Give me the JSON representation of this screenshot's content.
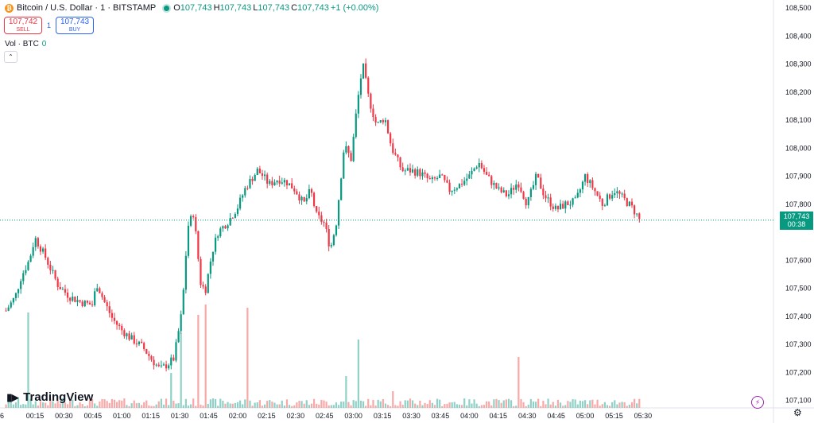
{
  "legend": {
    "symbol_icon": "bitcoin-icon",
    "title": "Bitcoin / U.S. Dollar · 1 · BITSTAMP",
    "open_key": "O",
    "open": "107,743",
    "high_key": "H",
    "high": "107,743",
    "low_key": "L",
    "low": "107,743",
    "close_key": "C",
    "close": "107,743",
    "change": "+1 (+0.00%)"
  },
  "trade": {
    "sell_price": "107,742",
    "sell_label": "SELL",
    "spread": "1",
    "buy_price": "107,743",
    "buy_label": "BUY"
  },
  "volume_legend": {
    "label": "Vol · BTC",
    "value": "0"
  },
  "collapse_icon": "chevron-up-icon",
  "price_tag": {
    "price": "107,743",
    "countdown": "00:38"
  },
  "logo": {
    "text": "TradingView",
    "icon": "tradingview-logo-icon"
  },
  "colors": {
    "up": "#089981",
    "down": "#f23645",
    "up_vol": "#8fd1c6",
    "down_vol": "#f7a9a7"
  },
  "chart_data": {
    "type": "candlestick",
    "interval": "1",
    "ylim": [
      107080,
      108540
    ],
    "yticks": [
      "108,500",
      "108,400",
      "108,300",
      "108,200",
      "108,100",
      "108,000",
      "107,900",
      "107,800",
      "107,600",
      "107,500",
      "107,400",
      "107,300",
      "107,200",
      "107,100"
    ],
    "xticks": [
      {
        "t": 0.25,
        "label": "00:15"
      },
      {
        "t": 0.5,
        "label": "00:30"
      },
      {
        "t": 0.75,
        "label": "00:45"
      },
      {
        "t": 1.0,
        "label": "01:00"
      },
      {
        "t": 1.25,
        "label": "01:15"
      },
      {
        "t": 1.5,
        "label": "01:30"
      },
      {
        "t": 1.75,
        "label": "01:45"
      },
      {
        "t": 2.0,
        "label": "02:00"
      },
      {
        "t": 2.25,
        "label": "02:15"
      },
      {
        "t": 2.5,
        "label": "02:30"
      },
      {
        "t": 2.75,
        "label": "02:45"
      },
      {
        "t": 3.0,
        "label": "03:00"
      },
      {
        "t": 3.25,
        "label": "03:15"
      },
      {
        "t": 3.5,
        "label": "03:30"
      },
      {
        "t": 3.75,
        "label": "03:45"
      },
      {
        "t": 4.0,
        "label": "04:00"
      },
      {
        "t": 4.25,
        "label": "04:15"
      },
      {
        "t": 4.5,
        "label": "04:30"
      },
      {
        "t": 4.75,
        "label": "04:45"
      },
      {
        "t": 5.0,
        "label": "05:00"
      },
      {
        "t": 5.25,
        "label": "05:15"
      },
      {
        "t": 5.5,
        "label": "05:30"
      }
    ],
    "x_left_partial_label": "6",
    "last_price": 107743,
    "key_points": [
      [
        0.0,
        107420
      ],
      [
        0.08,
        107470
      ],
      [
        0.13,
        107540
      ],
      [
        0.2,
        107600
      ],
      [
        0.25,
        107680
      ],
      [
        0.33,
        107620
      ],
      [
        0.45,
        107510
      ],
      [
        0.55,
        107470
      ],
      [
        0.65,
        107450
      ],
      [
        0.75,
        107440
      ],
      [
        0.78,
        107520
      ],
      [
        0.85,
        107450
      ],
      [
        0.92,
        107390
      ],
      [
        1.0,
        107350
      ],
      [
        1.08,
        107320
      ],
      [
        1.18,
        107290
      ],
      [
        1.25,
        107250
      ],
      [
        1.33,
        107210
      ],
      [
        1.4,
        107230
      ],
      [
        1.45,
        107250
      ],
      [
        1.52,
        107420
      ],
      [
        1.57,
        107720
      ],
      [
        1.62,
        107770
      ],
      [
        1.68,
        107520
      ],
      [
        1.72,
        107490
      ],
      [
        1.78,
        107630
      ],
      [
        1.83,
        107700
      ],
      [
        1.92,
        107740
      ],
      [
        2.0,
        107790
      ],
      [
        2.07,
        107860
      ],
      [
        2.17,
        107920
      ],
      [
        2.22,
        107900
      ],
      [
        2.27,
        107870
      ],
      [
        2.35,
        107890
      ],
      [
        2.42,
        107880
      ],
      [
        2.5,
        107850
      ],
      [
        2.57,
        107800
      ],
      [
        2.63,
        107850
      ],
      [
        2.68,
        107760
      ],
      [
        2.75,
        107730
      ],
      [
        2.8,
        107640
      ],
      [
        2.85,
        107730
      ],
      [
        2.92,
        108010
      ],
      [
        2.98,
        107960
      ],
      [
        3.03,
        108150
      ],
      [
        3.08,
        108300
      ],
      [
        3.13,
        108180
      ],
      [
        3.2,
        108080
      ],
      [
        3.27,
        108110
      ],
      [
        3.33,
        108000
      ],
      [
        3.42,
        107920
      ],
      [
        3.5,
        107920
      ],
      [
        3.58,
        107910
      ],
      [
        3.67,
        107880
      ],
      [
        3.75,
        107900
      ],
      [
        3.83,
        107850
      ],
      [
        3.92,
        107870
      ],
      [
        4.0,
        107900
      ],
      [
        4.08,
        107950
      ],
      [
        4.15,
        107900
      ],
      [
        4.25,
        107850
      ],
      [
        4.33,
        107830
      ],
      [
        4.42,
        107880
      ],
      [
        4.5,
        107800
      ],
      [
        4.58,
        107900
      ],
      [
        4.65,
        107830
      ],
      [
        4.75,
        107780
      ],
      [
        4.83,
        107800
      ],
      [
        4.92,
        107810
      ],
      [
        5.0,
        107900
      ],
      [
        5.08,
        107850
      ],
      [
        5.15,
        107800
      ],
      [
        5.25,
        107850
      ],
      [
        5.33,
        107820
      ],
      [
        5.4,
        107790
      ],
      [
        5.45,
        107760
      ],
      [
        5.47,
        107743
      ]
    ],
    "volume_spikes": [
      [
        0.2,
        120
      ],
      [
        1.5,
        94
      ],
      [
        1.67,
        117
      ],
      [
        1.72,
        130
      ],
      [
        2.09,
        126
      ],
      [
        3.04,
        86
      ],
      [
        3.35,
        21
      ],
      [
        4.43,
        64
      ],
      [
        1.42,
        44
      ],
      [
        2.93,
        40
      ]
    ]
  }
}
